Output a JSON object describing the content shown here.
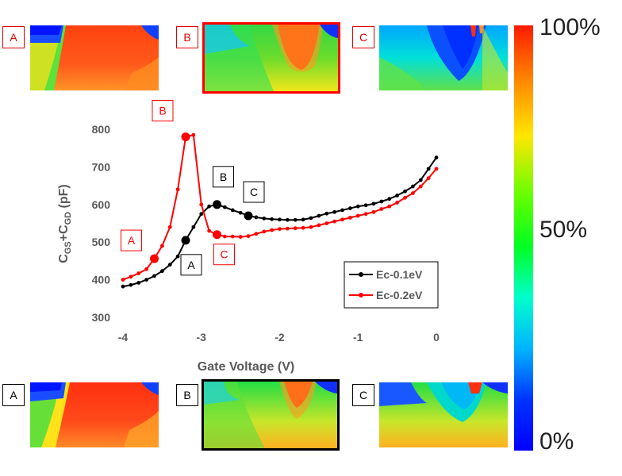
{
  "top_row": {
    "labels": [
      "A",
      "B",
      "C"
    ],
    "highlight": "B",
    "highlight_color": "#ff0000"
  },
  "bottom_row": {
    "labels": [
      "A",
      "B",
      "C"
    ],
    "highlight": "B",
    "highlight_color": "#000000"
  },
  "colorbar": {
    "top_label": "100%",
    "mid_label": "50%",
    "bottom_label": "0%",
    "colors": [
      "#ff1a00",
      "#ff8800",
      "#ffe600",
      "#66ff00",
      "#00ff22",
      "#00ffcc",
      "#00b4ff",
      "#0033ff",
      "#0000ff"
    ]
  },
  "chart_data": {
    "type": "line",
    "xlabel": "Gate Voltage (V)",
    "ylabel": "CGS+CGD (pF)",
    "xlim": [
      -4,
      0
    ],
    "ylim": [
      300,
      800
    ],
    "xticks": [
      -4,
      -3,
      -2,
      -1,
      0
    ],
    "yticks": [
      300,
      400,
      500,
      600,
      700,
      800
    ],
    "grid": false,
    "legend_position": "lower-right",
    "series": [
      {
        "name": "Ec-0.1eV",
        "color": "#000000",
        "x": [
          -4.0,
          -3.9,
          -3.8,
          -3.7,
          -3.6,
          -3.5,
          -3.4,
          -3.3,
          -3.2,
          -3.1,
          -3.0,
          -2.9,
          -2.8,
          -2.7,
          -2.6,
          -2.5,
          -2.4,
          -2.3,
          -2.2,
          -2.1,
          -2.0,
          -1.9,
          -1.8,
          -1.7,
          -1.6,
          -1.5,
          -1.4,
          -1.3,
          -1.2,
          -1.1,
          -1.0,
          -0.9,
          -0.8,
          -0.7,
          -0.6,
          -0.5,
          -0.4,
          -0.3,
          -0.2,
          -0.1,
          0.0
        ],
        "values": [
          382,
          386,
          392,
          400,
          410,
          423,
          440,
          462,
          505,
          540,
          575,
          595,
          600,
          593,
          585,
          578,
          570,
          566,
          563,
          561,
          560,
          559,
          559,
          560,
          564,
          570,
          576,
          580,
          585,
          590,
          595,
          598,
          602,
          608,
          615,
          624,
          635,
          648,
          665,
          695,
          725
        ]
      },
      {
        "name": "Ec-0.2eV",
        "color": "#ff0000",
        "x": [
          -4.0,
          -3.9,
          -3.8,
          -3.7,
          -3.6,
          -3.5,
          -3.4,
          -3.3,
          -3.2,
          -3.1,
          -3.0,
          -2.9,
          -2.8,
          -2.7,
          -2.6,
          -2.5,
          -2.4,
          -2.3,
          -2.2,
          -2.1,
          -2.0,
          -1.9,
          -1.8,
          -1.7,
          -1.6,
          -1.5,
          -1.4,
          -1.3,
          -1.2,
          -1.1,
          -1.0,
          -0.9,
          -0.8,
          -0.7,
          -0.6,
          -0.5,
          -0.4,
          -0.3,
          -0.2,
          -0.1,
          0.0
        ],
        "values": [
          400,
          408,
          417,
          428,
          456,
          490,
          540,
          640,
          780,
          785,
          600,
          530,
          520,
          515,
          515,
          514,
          516,
          522,
          528,
          532,
          535,
          536,
          537,
          538,
          540,
          545,
          550,
          555,
          560,
          565,
          570,
          575,
          580,
          588,
          595,
          605,
          618,
          630,
          648,
          670,
          695
        ]
      }
    ],
    "annotations": [
      {
        "text": "A",
        "series": "Ec-0.1eV",
        "x": -3.2,
        "y": 505,
        "color": "#000000"
      },
      {
        "text": "B",
        "series": "Ec-0.1eV",
        "x": -2.8,
        "y": 600,
        "color": "#000000"
      },
      {
        "text": "C",
        "series": "Ec-0.1eV",
        "x": -2.4,
        "y": 570,
        "color": "#000000"
      },
      {
        "text": "A",
        "series": "Ec-0.2eV",
        "x": -3.6,
        "y": 456,
        "color": "#ff0000"
      },
      {
        "text": "B",
        "series": "Ec-0.2eV",
        "x": -3.2,
        "y": 780,
        "color": "#ff0000"
      },
      {
        "text": "C",
        "series": "Ec-0.2eV",
        "x": -2.8,
        "y": 520,
        "color": "#ff0000"
      }
    ]
  }
}
